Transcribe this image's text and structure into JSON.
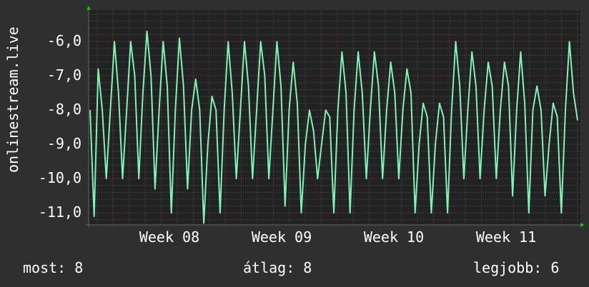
{
  "chart_data": {
    "type": "line",
    "title": "",
    "ylabel": "onlinestream.live",
    "xlabel": "",
    "ylim": [
      -11.35,
      -5.08
    ],
    "y_ticks": [
      "-6,0",
      "-7,0",
      "-8,0",
      "-9,0",
      "-10,0",
      "-11,0"
    ],
    "y_tick_values": [
      -6,
      -7,
      -8,
      -9,
      -10,
      -11
    ],
    "x_ticks": [
      "Week 08",
      "Week 09",
      "Week 10",
      "Week 11"
    ],
    "grid": true,
    "line_color": "#7af5b4",
    "grid_major_color": "#8a3030",
    "series": [
      {
        "values": [
          -8,
          -11.1,
          -6.8,
          -8,
          -10,
          -8,
          -6.0,
          -7.5,
          -10,
          -8,
          -6.0,
          -7.0,
          -10,
          -7.5,
          -5.7,
          -7.0,
          -10.3,
          -8,
          -6.0,
          -7.3,
          -11,
          -8,
          -5.9,
          -7.3,
          -10.3,
          -8,
          -7.1,
          -8,
          -11.3,
          -9,
          -7.6,
          -8,
          -11,
          -8,
          -6.0,
          -7.5,
          -10,
          -8,
          -6.0,
          -7.3,
          -10,
          -8,
          -6.0,
          -7.0,
          -10,
          -8,
          -6.0,
          -7.3,
          -10.8,
          -8,
          -6.6,
          -7.8,
          -11,
          -9,
          -8.0,
          -8.6,
          -10,
          -9,
          -8.0,
          -8.2,
          -11,
          -8,
          -6.3,
          -7.5,
          -11,
          -8,
          -6.3,
          -7.5,
          -10,
          -8,
          -6.3,
          -7.3,
          -10,
          -8,
          -6.6,
          -7.5,
          -10,
          -8,
          -6.8,
          -7.5,
          -11,
          -9,
          -7.8,
          -8.2,
          -11,
          -9,
          -7.8,
          -8.2,
          -11,
          -8,
          -6.0,
          -7.3,
          -10,
          -8,
          -6.3,
          -7.3,
          -10,
          -8,
          -6.6,
          -7.3,
          -10,
          -8,
          -6.6,
          -7.3,
          -10.5,
          -8,
          -6.3,
          -7.8,
          -11,
          -8,
          -7.3,
          -8,
          -10.5,
          -9,
          -7.8,
          -8.2,
          -11,
          -8,
          -6.0,
          -7.5,
          -8.3
        ]
      }
    ]
  },
  "legend": {
    "current": "most: 8",
    "average": "átlag: 8",
    "max": "legjobb: 6"
  }
}
